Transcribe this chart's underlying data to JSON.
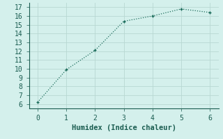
{
  "x": [
    0,
    1,
    2,
    3,
    4,
    5,
    6
  ],
  "y": [
    6.2,
    9.9,
    12.1,
    15.4,
    16.0,
    16.8,
    16.4
  ],
  "line_color": "#1a6b5a",
  "marker_color": "#1a6b5a",
  "background_color": "#d4f0ec",
  "grid_color": "#b8d8d2",
  "xlabel": "Humidex (Indice chaleur)",
  "xlim": [
    -0.3,
    6.3
  ],
  "ylim": [
    5.5,
    17.5
  ],
  "yticks": [
    6,
    7,
    8,
    9,
    10,
    11,
    12,
    13,
    14,
    15,
    16,
    17
  ],
  "xticks": [
    0,
    1,
    2,
    3,
    4,
    5,
    6
  ],
  "font_color": "#1a5c50",
  "xlabel_fontsize": 7.5,
  "tick_fontsize": 7,
  "linewidth": 0.9,
  "markersize": 3.5
}
